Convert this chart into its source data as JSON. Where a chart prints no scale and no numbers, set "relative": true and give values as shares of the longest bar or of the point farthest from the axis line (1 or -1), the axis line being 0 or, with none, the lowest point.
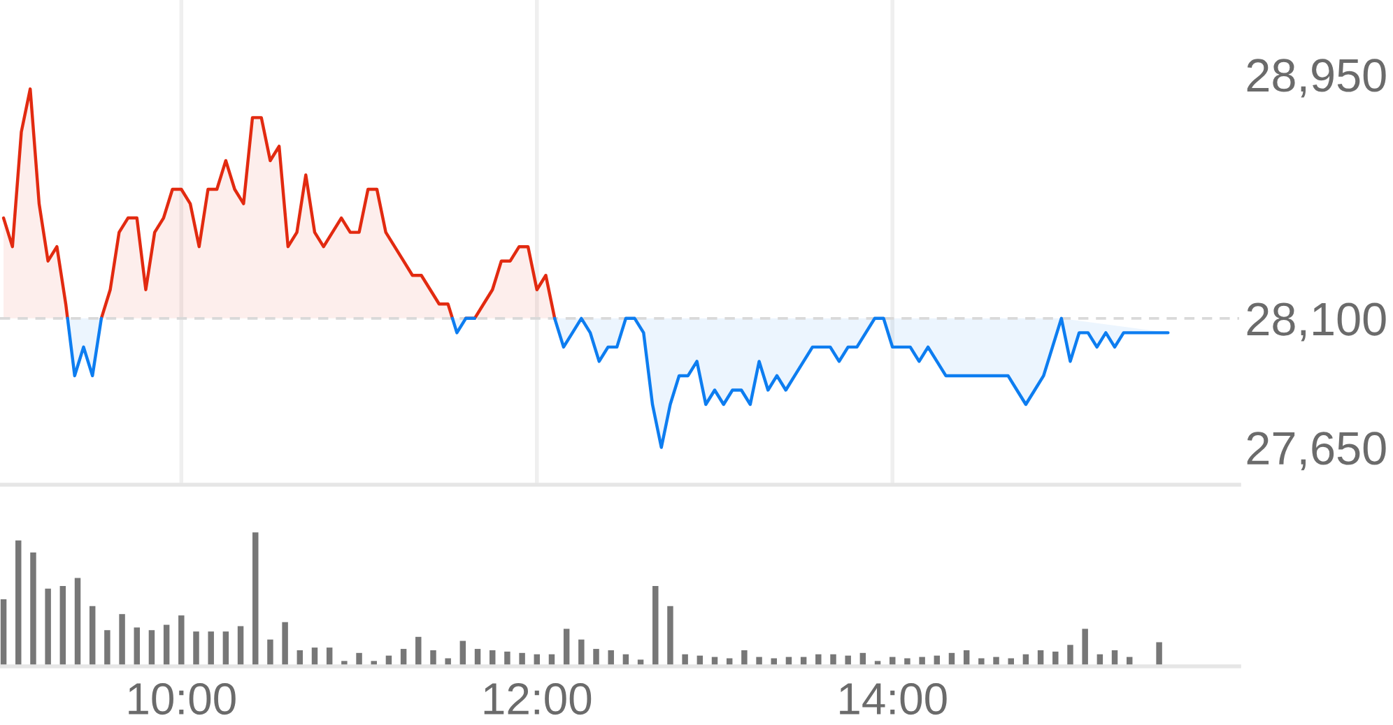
{
  "chart_data": [
    {
      "type": "area",
      "x": [
        9,
        9.05,
        9.1,
        9.15,
        9.2,
        9.25,
        9.3,
        9.35,
        9.36,
        9.4,
        9.45,
        9.5,
        9.55,
        9.6,
        9.65,
        9.7,
        9.75,
        9.8,
        9.85,
        9.9,
        9.95,
        10,
        10.05,
        10.1,
        10.15,
        10.2,
        10.25,
        10.3,
        10.35,
        10.4,
        10.45,
        10.5,
        10.55,
        10.6,
        10.65,
        10.7,
        10.75,
        10.8,
        10.85,
        10.9,
        10.95,
        11,
        11.05,
        11.1,
        11.15,
        11.2,
        11.25,
        11.3,
        11.35,
        11.4,
        11.45,
        11.5,
        11.525,
        11.55,
        11.6,
        11.65,
        11.7,
        11.75,
        11.8,
        11.85,
        11.9,
        11.95,
        12,
        12.05,
        12.1,
        12.15,
        12.2,
        12.25,
        12.3,
        12.35,
        12.4,
        12.45,
        12.5,
        12.55,
        12.6,
        12.65,
        12.7,
        12.75,
        12.8,
        12.85,
        12.9,
        12.95,
        13,
        13.05,
        13.1,
        13.15,
        13.2,
        13.25,
        13.3,
        13.35,
        13.4,
        13.45,
        13.5,
        13.55,
        13.6,
        13.65,
        13.7,
        13.75,
        13.8,
        13.85,
        13.9,
        13.95,
        14,
        14.05,
        14.1,
        14.15,
        14.2,
        14.25,
        14.3,
        14.35,
        14.4,
        14.45,
        14.5,
        14.55,
        14.6,
        14.65,
        14.7,
        14.75,
        14.8,
        14.85,
        14.9,
        14.95,
        15,
        15.05,
        15.1,
        15.15,
        15.2,
        15.25,
        15.3,
        15.35,
        15.4,
        15.45,
        15.5,
        15.55
      ],
      "series": [
        {
          "color": "#e22a10",
          "values": [
            28450,
            28350,
            28750,
            28900,
            28500,
            28300,
            28350,
            28150,
            28100,
            null,
            null,
            null,
            28100,
            28200,
            28400,
            28450,
            28450,
            28200,
            28400,
            28450,
            28550,
            28550,
            28500,
            28350,
            28550,
            28550,
            28650,
            28550,
            28500,
            28800,
            28800,
            28650,
            28700,
            28350,
            28400,
            28600,
            28400,
            28350,
            28400,
            28450,
            28400,
            28400,
            28550,
            28550,
            28400,
            28350,
            28300,
            28250,
            28250,
            28200,
            28150,
            28150,
            28100,
            null,
            28100,
            28100,
            28150,
            28200,
            28300,
            28300,
            28350,
            28350,
            28200,
            28250,
            28100,
            null,
            null,
            null,
            null,
            null,
            null,
            null,
            null,
            null,
            null,
            null,
            null,
            null,
            null,
            null,
            null,
            null,
            null,
            null,
            null,
            null,
            null,
            null,
            null,
            null,
            null,
            null,
            null,
            null,
            null,
            null,
            null,
            null,
            null,
            null,
            null,
            null,
            null,
            null,
            null,
            null,
            null,
            null,
            null,
            null,
            null,
            null,
            null,
            null,
            null,
            null,
            null,
            null,
            null,
            null,
            null,
            null,
            null,
            null,
            null,
            null,
            null,
            null,
            null,
            null,
            null,
            null,
            null,
            null
          ]
        },
        {
          "color": "#0d7df0",
          "values": [
            null,
            null,
            null,
            null,
            null,
            null,
            null,
            null,
            28100,
            27900,
            28000,
            27900,
            28100,
            null,
            null,
            null,
            null,
            null,
            null,
            null,
            null,
            null,
            null,
            null,
            null,
            null,
            null,
            null,
            null,
            null,
            null,
            null,
            null,
            null,
            null,
            null,
            null,
            null,
            null,
            null,
            null,
            null,
            null,
            null,
            null,
            null,
            null,
            null,
            null,
            null,
            null,
            null,
            28100,
            28050,
            28100,
            28100,
            null,
            null,
            null,
            null,
            null,
            null,
            null,
            null,
            28100,
            28000,
            28050,
            28100,
            28050,
            27950,
            28000,
            28000,
            28100,
            28100,
            28050,
            27800,
            27650,
            27800,
            27900,
            27900,
            27950,
            27800,
            27850,
            27800,
            27850,
            27850,
            27800,
            27950,
            27850,
            27900,
            27850,
            27900,
            27950,
            28000,
            28000,
            28000,
            27950,
            28000,
            28000,
            28050,
            28100,
            28100,
            28000,
            28000,
            28000,
            27950,
            28000,
            27950,
            27900,
            27900,
            27900,
            27900,
            27900,
            27900,
            27900,
            27900,
            27850,
            27800,
            27850,
            27900,
            28000,
            28100,
            27950,
            28050,
            28050,
            28000,
            28050,
            28000,
            28050,
            28050,
            28050,
            28050,
            28050,
            28050
          ]
        }
      ],
      "xlim": [
        8.98,
        15.95
      ],
      "xticks": [
        {
          "value": 10,
          "label": null
        },
        {
          "value": 12,
          "label": null
        },
        {
          "value": 14,
          "label": null
        }
      ],
      "ylim": [
        27520,
        29210
      ],
      "yticks": [
        {
          "value": 28950,
          "label": "28,950"
        },
        {
          "value": 28100,
          "label": "28,100"
        },
        {
          "value": 27650,
          "label": "27,650"
        }
      ],
      "ref_lines": [
        {
          "axis": "y",
          "value": 28100,
          "color": "#d9d9d9",
          "line_style": "dashed"
        }
      ],
      "grid": "x",
      "tick_labels": "y"
    },
    {
      "type": "bar",
      "x": [
        9,
        9.0833,
        9.1667,
        9.25,
        9.3333,
        9.4167,
        9.5,
        9.5833,
        9.6667,
        9.75,
        9.8333,
        9.9167,
        10,
        10.0833,
        10.1667,
        10.25,
        10.3333,
        10.4167,
        10.5,
        10.5833,
        10.6667,
        10.75,
        10.8333,
        10.9167,
        11,
        11.0833,
        11.1667,
        11.25,
        11.3333,
        11.4167,
        11.5,
        11.5833,
        11.6667,
        11.75,
        11.8333,
        11.9167,
        12,
        12.0833,
        12.1667,
        12.25,
        12.3333,
        12.4167,
        12.5,
        12.5833,
        12.6667,
        12.75,
        12.8333,
        12.9167,
        13,
        13.0833,
        13.1667,
        13.25,
        13.3333,
        13.4167,
        13.5,
        13.5833,
        13.6667,
        13.75,
        13.8333,
        13.9167,
        14,
        14.0833,
        14.1667,
        14.25,
        14.3333,
        14.4167,
        14.5,
        14.5833,
        14.6667,
        14.75,
        14.8333,
        14.9167,
        15,
        15.0833,
        15.1667,
        15.25,
        15.3333,
        15.5
      ],
      "values": [
        0.5,
        0.94,
        0.85,
        0.58,
        0.6,
        0.66,
        0.45,
        0.27,
        0.39,
        0.29,
        0.27,
        0.31,
        0.38,
        0.26,
        0.26,
        0.26,
        0.3,
        1,
        0.2,
        0.33,
        0.12,
        0.14,
        0.14,
        0.04,
        0.1,
        0.04,
        0.08,
        0.13,
        0.22,
        0.12,
        0.06,
        0.19,
        0.13,
        0.12,
        0.11,
        0.1,
        0.09,
        0.09,
        0.28,
        0.2,
        0.13,
        0.12,
        0.09,
        0.05,
        0.6,
        0.45,
        0.09,
        0.08,
        0.07,
        0.06,
        0.12,
        0.07,
        0.06,
        0.07,
        0.07,
        0.09,
        0.09,
        0.08,
        0.1,
        0.04,
        0.07,
        0.06,
        0.07,
        0.08,
        0.1,
        0.12,
        0.06,
        0.07,
        0.06,
        0.09,
        0.12,
        0.11,
        0.16,
        0.28,
        0.09,
        0.12,
        0.07,
        0.18
      ],
      "color": "#777777",
      "relative": true,
      "xlim": [
        8.98,
        15.95
      ],
      "xticks": [
        {
          "value": 10,
          "label": "10:00"
        },
        {
          "value": 12,
          "label": "12:00"
        },
        {
          "value": 14,
          "label": "14:00"
        }
      ],
      "tick_labels": "x"
    }
  ]
}
